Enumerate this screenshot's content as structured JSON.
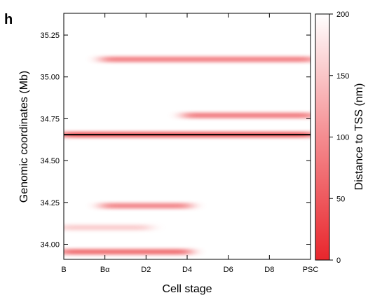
{
  "chart_data": {
    "type": "heatmap",
    "panel_label": "h",
    "xlabel": "Cell stage",
    "ylabel": "Genomic coordinates (Mb)",
    "colorbar_label": "Distance to TSS (nm)",
    "categories": [
      "B",
      "Bα",
      "D2",
      "D4",
      "D6",
      "D8",
      "PSC"
    ],
    "y_ticks": [
      34.0,
      34.25,
      34.5,
      34.75,
      35.0,
      35.25
    ],
    "y_tick_labels": [
      "34.00",
      "34.25",
      "34.50",
      "34.75",
      "35.00",
      "35.25"
    ],
    "ylim": [
      33.91,
      35.38
    ],
    "colorbar_range": [
      0,
      200
    ],
    "colorbar_ticks": [
      0,
      50,
      100,
      150,
      200
    ],
    "colorbar_tick_labels": [
      "0",
      "50",
      "100",
      "150",
      "200"
    ],
    "tss_coordinate": 34.655,
    "colors": {
      "low": "#e8262c",
      "high": "#ffffff",
      "tss_line": "#000000"
    },
    "bands": [
      {
        "y": 34.655,
        "x_start": "B",
        "x_end": "PSC",
        "min_distance": 30
      },
      {
        "y": 34.77,
        "x_start": "D4",
        "x_end": "PSC",
        "min_distance": 70
      },
      {
        "y": 35.105,
        "x_start": "Bα",
        "x_end": "PSC",
        "min_distance": 75
      },
      {
        "y": 34.23,
        "x_start": "Bα",
        "x_end": "D4",
        "min_distance": 80
      },
      {
        "y": 33.955,
        "x_start": "B",
        "x_end": "D4",
        "min_distance": 55
      },
      {
        "y": 34.1,
        "x_start": "B",
        "x_end": "D2",
        "min_distance": 150
      }
    ]
  }
}
